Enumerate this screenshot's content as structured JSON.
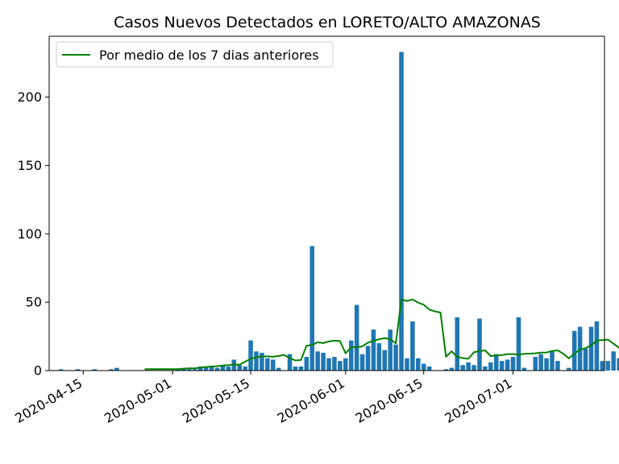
{
  "chart_data": {
    "type": "bar",
    "title": "Casos Nuevos Detectados en LORETO/ALTO AMAZONAS",
    "xlabel": "",
    "ylabel": "",
    "start_date": "2020-04-11",
    "ylim": [
      0,
      240
    ],
    "yticks": [
      0,
      50,
      100,
      150,
      200
    ],
    "xticks": [
      {
        "date": "2020-04-15",
        "label": "2020-04-15"
      },
      {
        "date": "2020-05-01",
        "label": "2020-05-01"
      },
      {
        "date": "2020-05-15",
        "label": "2020-05-15"
      },
      {
        "date": "2020-06-01",
        "label": "2020-06-01"
      },
      {
        "date": "2020-06-15",
        "label": "2020-06-15"
      },
      {
        "date": "2020-07-01",
        "label": "2020-07-01"
      }
    ],
    "legend": {
      "position": "top-left",
      "line_label": "Por medio de los 7 dias anteriores"
    },
    "colors": {
      "bars": "#1f77b4",
      "line": "#008000"
    },
    "bar_values": [
      1,
      0,
      0,
      1,
      0,
      0,
      1,
      0,
      0,
      1,
      2,
      0,
      0,
      0,
      0,
      0,
      0,
      0,
      0,
      0,
      0,
      1,
      1,
      1,
      1,
      3,
      2,
      3,
      2,
      4,
      3,
      8,
      4,
      3,
      22,
      14,
      13,
      9,
      8,
      2,
      0,
      12,
      3,
      3,
      10,
      91,
      14,
      13,
      9,
      10,
      7,
      9,
      22,
      48,
      12,
      18,
      30,
      20,
      15,
      30,
      19,
      233,
      9,
      36,
      9,
      5,
      3,
      0,
      0,
      1,
      2,
      39,
      4,
      6,
      4,
      38,
      3,
      6,
      12,
      7,
      8,
      10,
      39,
      2,
      0,
      10,
      12,
      9,
      14,
      7,
      0,
      2,
      29,
      32,
      16,
      32,
      36,
      7,
      7,
      14,
      9,
      14
    ],
    "average_values": [
      null,
      null,
      null,
      null,
      null,
      null,
      null,
      null,
      null,
      null,
      null,
      null,
      null,
      null,
      null,
      1,
      1,
      1,
      1,
      1,
      1,
      1,
      1.4,
      1.6,
      1.7,
      2.1,
      2.6,
      3,
      3.2,
      3.7,
      4,
      4.4,
      4.3,
      6.5,
      8.6,
      9.7,
      10.4,
      10.4,
      10.1,
      10.7,
      11.4,
      9.1,
      7.4,
      7.7,
      18.1,
      18.7,
      20.7,
      20.1,
      21.3,
      21.9,
      21.6,
      12.6,
      17.1,
      17.1,
      17.7,
      20.4,
      21.7,
      22.9,
      23.7,
      22.9,
      19.9,
      52,
      50.9,
      52,
      49.7,
      48.1,
      44.6,
      43.3,
      42.4,
      10.1,
      14.1,
      10,
      9.1,
      8.6,
      13.4,
      14.3,
      14.7,
      10.6,
      11.1,
      11.3,
      12,
      12,
      11.7,
      12.2,
      12.4,
      12.6,
      13.1,
      13.2,
      14.4,
      14.7,
      12.4,
      8.9,
      12.4,
      15.3,
      16.4,
      18.4,
      21.9,
      22.3,
      22.6,
      19.7,
      16.6,
      13.9
    ]
  }
}
